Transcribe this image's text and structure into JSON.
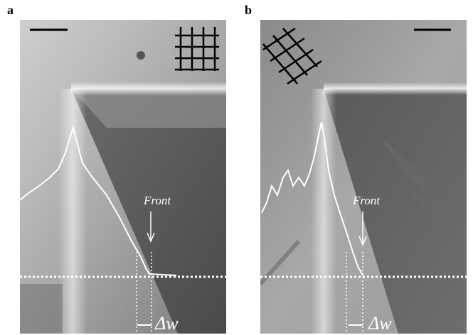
{
  "panels": [
    {
      "label": "a",
      "front": "Front",
      "delta": "Δw"
    },
    {
      "label": "b",
      "front": "Front",
      "delta": "Δw"
    }
  ]
}
